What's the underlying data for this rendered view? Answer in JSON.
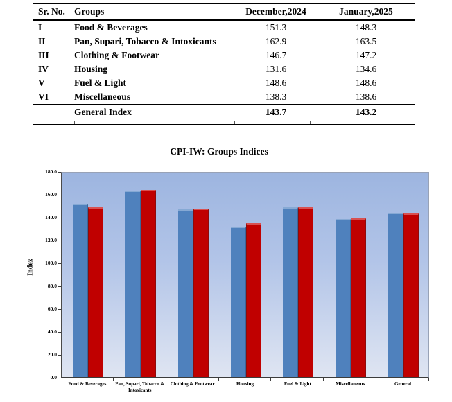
{
  "table": {
    "columns": [
      "Sr. No.",
      "Groups",
      "December,2024",
      "January,2025"
    ],
    "rows": [
      {
        "sr": "I",
        "group": "Food & Beverages",
        "dec": "151.3",
        "jan": "148.3"
      },
      {
        "sr": "II",
        "group": "Pan, Supari, Tobacco & Intoxicants",
        "dec": "162.9",
        "jan": "163.5"
      },
      {
        "sr": "III",
        "group": "Clothing & Footwear",
        "dec": "146.7",
        "jan": "147.2"
      },
      {
        "sr": "IV",
        "group": "Housing",
        "dec": "131.6",
        "jan": "134.6"
      },
      {
        "sr": "V",
        "group": "Fuel & Light",
        "dec": "148.6",
        "jan": "148.6"
      },
      {
        "sr": "VI",
        "group": "Miscellaneous",
        "dec": "138.3",
        "jan": "138.6"
      }
    ],
    "footer_row": {
      "group": "General Index",
      "dec": "143.7",
      "jan": "143.2"
    }
  },
  "chart": {
    "title": "CPI-IW: Groups Indices",
    "ylabel": "Index"
  },
  "chart_data": {
    "type": "bar",
    "title": "CPI-IW: Groups Indices",
    "categories": [
      "Food & Beverages",
      "Pan, Supari, Tobacco & Intoxicants",
      "Clothing & Footwear",
      "Housing",
      "Fuel & Light",
      "Miscellaneous",
      "General"
    ],
    "series": [
      {
        "name": "December,2024",
        "color": "#4f81bd",
        "values": [
          151.3,
          162.9,
          146.7,
          131.6,
          148.6,
          138.3,
          143.7
        ]
      },
      {
        "name": "January,2025",
        "color": "#c00000",
        "values": [
          148.3,
          163.5,
          147.2,
          134.6,
          148.6,
          138.6,
          143.2
        ]
      }
    ],
    "xlabel": "",
    "ylabel": "Index",
    "ylim": [
      0,
      180
    ],
    "ytick_step": 20,
    "ytick_format": "one_decimal",
    "legend": "none",
    "grid": false,
    "plot_background": [
      "#9db5e0",
      "#dfe5f2"
    ]
  }
}
